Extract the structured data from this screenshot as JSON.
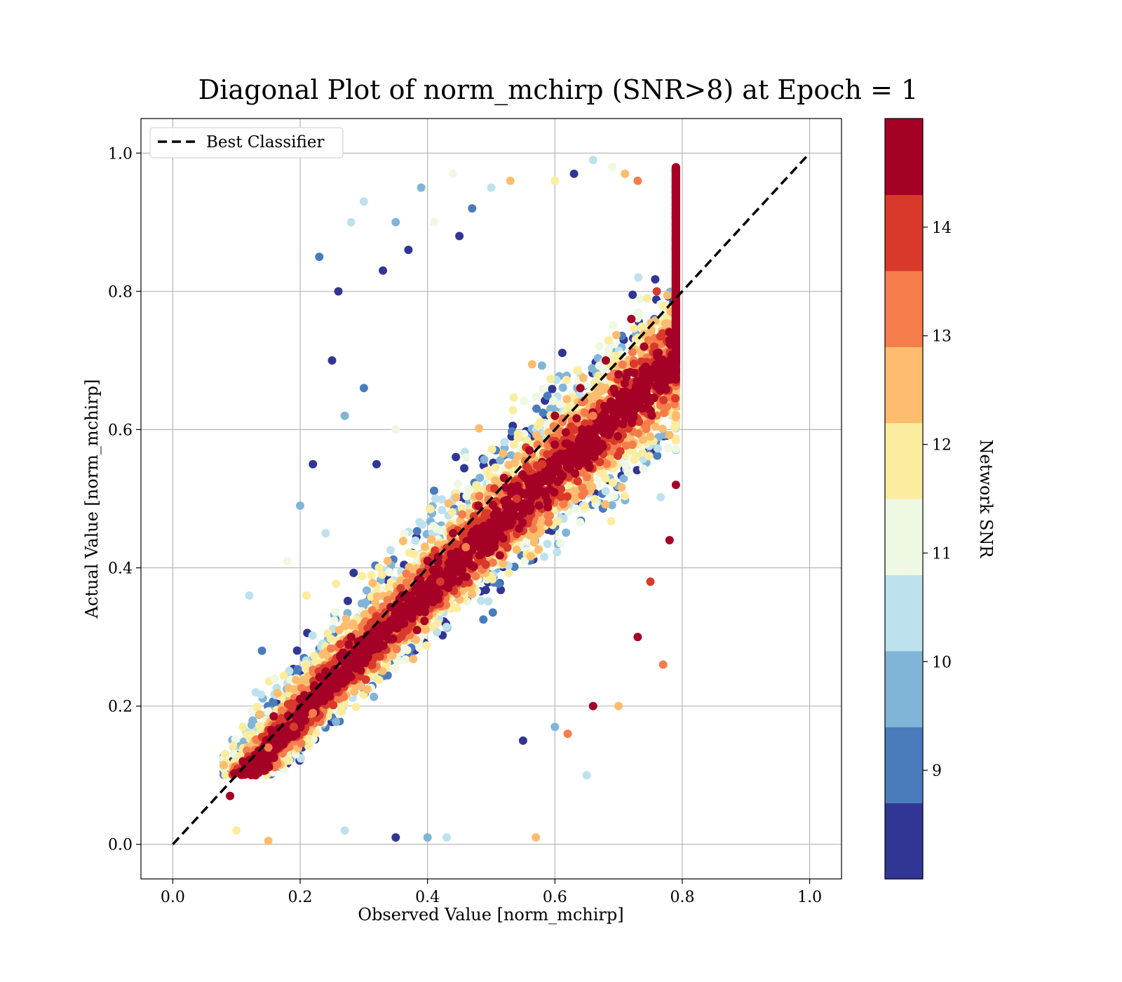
{
  "chart_data": {
    "type": "scatter",
    "title": "Diagonal Plot of norm_mchirp (SNR>8) at Epoch = 1",
    "xlabel": "Observed Value [norm_mchirp]",
    "ylabel": "Actual Value [norm_mchirp]",
    "xlim": [
      -0.05,
      1.05
    ],
    "ylim": [
      -0.05,
      1.05
    ],
    "xticks": [
      "0.0",
      "0.2",
      "0.4",
      "0.6",
      "0.8",
      "1.0"
    ],
    "yticks": [
      "0.0",
      "0.2",
      "0.4",
      "0.6",
      "0.8",
      "1.0"
    ],
    "grid": true,
    "legend": {
      "position": "top-left",
      "entries": [
        "Best Classifier"
      ]
    },
    "reference_line": {
      "name": "Best Classifier",
      "x": [
        0.0,
        1.0
      ],
      "y": [
        0.0,
        1.0
      ],
      "style": "dashed",
      "color": "#000000"
    },
    "colorbar": {
      "label": "Network SNR",
      "range": [
        8.0,
        15.0
      ],
      "ticks": [
        "9",
        "10",
        "11",
        "12",
        "13",
        "14"
      ],
      "colors": [
        "#313695",
        "#4575b4",
        "#74add1",
        "#abd9e9",
        "#e0f3f8",
        "#fee090",
        "#fdae61",
        "#f46d43",
        "#d73027",
        "#a50026"
      ],
      "bands": [
        "#313695",
        "#4a7cbb",
        "#80b5d8",
        "#bde2ee",
        "#eff8e2",
        "#fcec9f",
        "#fdbc6e",
        "#f57d4c",
        "#d9392b",
        "#a50026"
      ]
    },
    "series": [
      {
        "marker": "circle",
        "color_by": "Network SNR",
        "points": [
          [
            0.09,
            0.07,
            14.8
          ],
          [
            0.11,
            0.12,
            14.5
          ],
          [
            0.13,
            0.1,
            14.9
          ],
          [
            0.15,
            0.14,
            13.6
          ],
          [
            0.17,
            0.16,
            14.7
          ],
          [
            0.19,
            0.17,
            14.2
          ],
          [
            0.2,
            0.21,
            14.9
          ],
          [
            0.22,
            0.19,
            13.1
          ],
          [
            0.24,
            0.25,
            14.6
          ],
          [
            0.26,
            0.24,
            14.9
          ],
          [
            0.28,
            0.3,
            14.3
          ],
          [
            0.3,
            0.27,
            14.8
          ],
          [
            0.32,
            0.33,
            13.8
          ],
          [
            0.34,
            0.31,
            14.9
          ],
          [
            0.36,
            0.36,
            14.4
          ],
          [
            0.38,
            0.35,
            14.9
          ],
          [
            0.4,
            0.41,
            14.7
          ],
          [
            0.42,
            0.38,
            14.1
          ],
          [
            0.44,
            0.45,
            14.9
          ],
          [
            0.46,
            0.43,
            13.5
          ],
          [
            0.48,
            0.49,
            14.8
          ],
          [
            0.5,
            0.46,
            14.9
          ],
          [
            0.52,
            0.53,
            14.6
          ],
          [
            0.54,
            0.5,
            14.2
          ],
          [
            0.56,
            0.57,
            14.9
          ],
          [
            0.58,
            0.55,
            13.9
          ],
          [
            0.6,
            0.62,
            14.8
          ],
          [
            0.62,
            0.58,
            14.4
          ],
          [
            0.64,
            0.66,
            14.9
          ],
          [
            0.66,
            0.62,
            13.2
          ],
          [
            0.68,
            0.7,
            14.7
          ],
          [
            0.7,
            0.68,
            14.9
          ],
          [
            0.72,
            0.76,
            14.3
          ],
          [
            0.74,
            0.72,
            14.9
          ],
          [
            0.76,
            0.8,
            13.7
          ],
          [
            0.23,
            0.85,
            9.2
          ],
          [
            0.26,
            0.8,
            8.3
          ],
          [
            0.28,
            0.9,
            10.2
          ],
          [
            0.3,
            0.93,
            10.6
          ],
          [
            0.33,
            0.83,
            8.5
          ],
          [
            0.35,
            0.9,
            9.4
          ],
          [
            0.37,
            0.86,
            8.2
          ],
          [
            0.39,
            0.95,
            9.7
          ],
          [
            0.41,
            0.9,
            10.8
          ],
          [
            0.44,
            0.97,
            11.4
          ],
          [
            0.25,
            0.7,
            8.4
          ],
          [
            0.27,
            0.62,
            10.1
          ],
          [
            0.3,
            0.66,
            9.2
          ],
          [
            0.32,
            0.55,
            8.3
          ],
          [
            0.35,
            0.6,
            11.2
          ],
          [
            0.22,
            0.55,
            8.2
          ],
          [
            0.2,
            0.49,
            9.5
          ],
          [
            0.24,
            0.45,
            10.4
          ],
          [
            0.18,
            0.41,
            10.9
          ],
          [
            0.21,
            0.36,
            11.7
          ],
          [
            0.12,
            0.36,
            10.3
          ],
          [
            0.14,
            0.28,
            9.1
          ],
          [
            0.16,
            0.24,
            11.3
          ],
          [
            0.13,
            0.22,
            10.7
          ],
          [
            0.11,
            0.17,
            12.1
          ],
          [
            0.1,
            0.02,
            11.8
          ],
          [
            0.15,
            0.005,
            12.4
          ],
          [
            0.27,
            0.02,
            10.4
          ],
          [
            0.35,
            0.01,
            8.3
          ],
          [
            0.4,
            0.01,
            9.6
          ],
          [
            0.43,
            0.01,
            10.2
          ],
          [
            0.57,
            0.01,
            12.6
          ],
          [
            0.65,
            0.1,
            10.3
          ],
          [
            0.6,
            0.17,
            9.6
          ],
          [
            0.55,
            0.15,
            8.6
          ],
          [
            0.62,
            0.16,
            13.5
          ],
          [
            0.66,
            0.2,
            14.6
          ],
          [
            0.7,
            0.2,
            12.5
          ],
          [
            0.73,
            0.3,
            14.8
          ],
          [
            0.75,
            0.38,
            13.9
          ],
          [
            0.78,
            0.44,
            14.7
          ],
          [
            0.77,
            0.26,
            12.9
          ],
          [
            0.79,
            0.52,
            14.6
          ],
          [
            0.78,
            0.7,
            14.8
          ],
          [
            0.79,
            0.8,
            14.9
          ],
          [
            0.66,
            0.99,
            10.2
          ],
          [
            0.69,
            0.98,
            11.1
          ],
          [
            0.71,
            0.97,
            12.4
          ],
          [
            0.73,
            0.96,
            13.2
          ],
          [
            0.6,
            0.96,
            11.5
          ],
          [
            0.63,
            0.97,
            8.4
          ],
          [
            0.53,
            0.96,
            12.8
          ],
          [
            0.5,
            0.95,
            10.6
          ],
          [
            0.47,
            0.92,
            9.3
          ],
          [
            0.45,
            0.88,
            8.2
          ]
        ]
      }
    ]
  }
}
